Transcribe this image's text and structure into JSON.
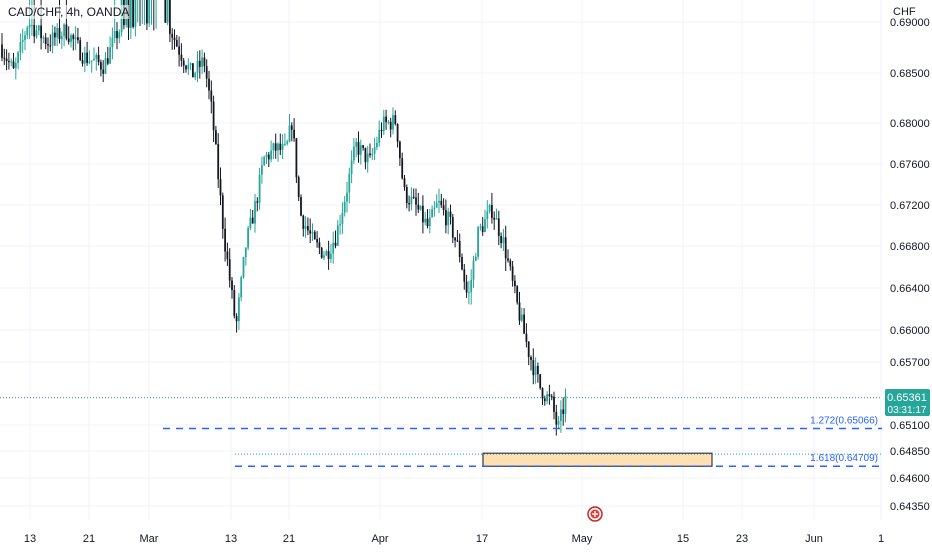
{
  "chart_data": {
    "type": "candlestick",
    "title": "CAD/CHF, 4h, OANDA",
    "currency_label": "CHF",
    "y_axis": {
      "ticks": [
        "0.69000",
        "0.68500",
        "0.68000",
        "0.67600",
        "0.67200",
        "0.66800",
        "0.66400",
        "0.66000",
        "0.65700",
        "0.65100",
        "0.64850",
        "0.64600",
        "0.64350"
      ]
    },
    "x_axis": {
      "ticks": [
        "13",
        "21",
        "Mar",
        "13",
        "21",
        "Apr",
        "17",
        "May",
        "15",
        "23",
        "Jun",
        "1"
      ]
    },
    "price_marker": {
      "value": "0.65361",
      "countdown": "03:31:17",
      "color": "#26a69a"
    },
    "fib_levels": [
      {
        "label": "1.272(0.65066)",
        "value": 0.65066,
        "color": "#2962ff"
      },
      {
        "label": "1.618(0.64709)",
        "value": 0.64709,
        "color": "#2962ff"
      }
    ],
    "target_zone": {
      "from": 0.64709,
      "to": 0.6483,
      "fill": "#ffe0b2"
    },
    "colors": {
      "up": "#26a69a",
      "down": "#131722"
    }
  }
}
